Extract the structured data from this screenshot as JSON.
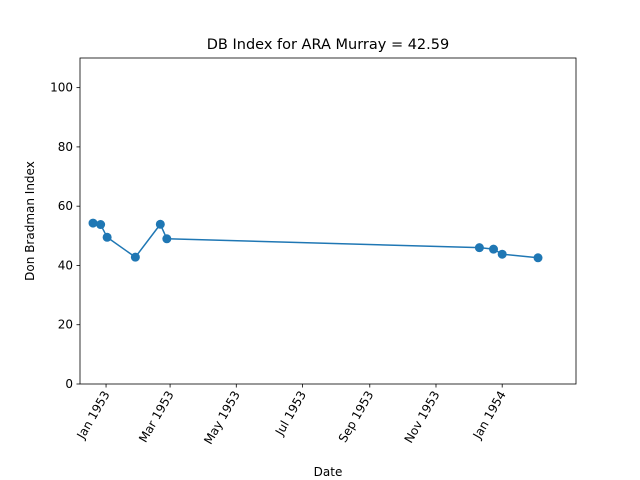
{
  "chart_data": {
    "type": "line",
    "title": "DB Index for ARA Murray = 42.59",
    "xlabel": "Date",
    "ylabel": "Don Bradman Index",
    "ylim": [
      0,
      110
    ],
    "xlim": [
      "1952-12-08",
      "1954-03-10"
    ],
    "yticks": [
      0,
      20,
      40,
      60,
      80,
      100
    ],
    "xticks": [
      {
        "date": "1953-01-01",
        "label": "Jan 1953"
      },
      {
        "date": "1953-03-01",
        "label": "Mar 1953"
      },
      {
        "date": "1953-05-01",
        "label": "May 1953"
      },
      {
        "date": "1953-07-01",
        "label": "Jul 1953"
      },
      {
        "date": "1953-09-01",
        "label": "Sep 1953"
      },
      {
        "date": "1953-11-01",
        "label": "Nov 1953"
      },
      {
        "date": "1954-01-01",
        "label": "Jan 1954"
      }
    ],
    "grid": false,
    "series": [
      {
        "color": "#1f77b4",
        "points": [
          {
            "x": "1952-12-20",
            "y": 54.3
          },
          {
            "x": "1952-12-27",
            "y": 53.8
          },
          {
            "x": "1953-01-02",
            "y": 49.5
          },
          {
            "x": "1953-01-28",
            "y": 42.8
          },
          {
            "x": "1953-02-20",
            "y": 53.9
          },
          {
            "x": "1953-02-26",
            "y": 49.0
          },
          {
            "x": "1953-12-11",
            "y": 46.0
          },
          {
            "x": "1953-12-24",
            "y": 45.5
          },
          {
            "x": "1954-01-01",
            "y": 43.8
          },
          {
            "x": "1954-02-03",
            "y": 42.59
          }
        ]
      }
    ]
  }
}
